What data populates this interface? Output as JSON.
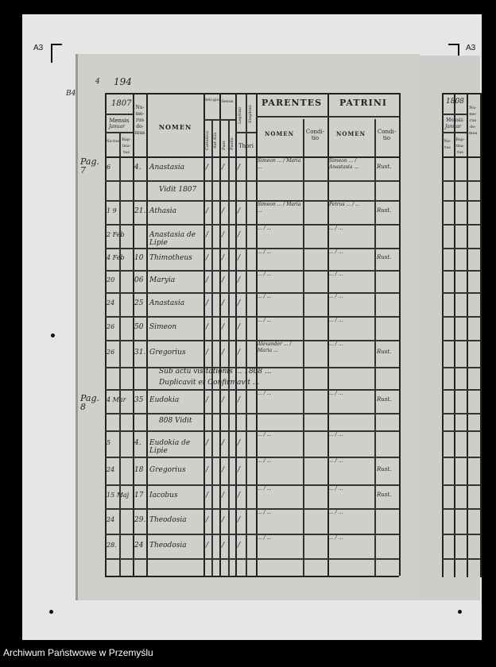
{
  "scan": {
    "sheet_label_left": "A3",
    "sheet_label_right": "A3",
    "footer": "Archiwum Państwowe w Przemyślu"
  },
  "page": {
    "margin_marks": {
      "b4": "B4",
      "folio_small": "4",
      "folio": "194",
      "pag_7": "Pag. 7",
      "pag_8": "Pag. 8"
    },
    "header": {
      "year": "1807",
      "mensis": "Mensis",
      "mensis_value": "Januar",
      "natus": "Na-tus",
      "baptisatus": "Bap-tisa-tus",
      "numerus_domus": "Nu-me-rus do-mus",
      "nomen": "NOMEN",
      "religio": "Reli-gio",
      "catholica": "Catholica",
      "aut_alia": "Aut Alia",
      "sexus": "Sexus",
      "puer": "Puer",
      "puella": "Puella",
      "legitimi": "Legitimi",
      "illegitimi": "Illegitimi",
      "thori": "Thori",
      "parentes": "PARENTES",
      "parentes_nomen": "NOMEN",
      "parentes_conditio": "Condi-tio",
      "patrini": "PATRINI",
      "patrini_nomen": "NOMEN",
      "patrini_conditio": "Condi-tio"
    },
    "rows": [
      {
        "date": "6",
        "house": "4.",
        "name": "Anastasia",
        "parents": "Simeon ... / Maria ...",
        "patrini": "Simeon ... / Anastasia ...",
        "conditio": "Rust."
      },
      {
        "note": "Vidit 1807"
      },
      {
        "date": "1 9",
        "house": "21.",
        "name": "Athasia",
        "parents": "Simeon ... / Maria ...",
        "patrini": "Petrus ... / ...",
        "conditio": "Rust."
      },
      {
        "date": "2 Feb",
        "house": "",
        "name": "Anastasia de Lipie",
        "parents": "... / ...",
        "patrini": "... / ...",
        "conditio": ""
      },
      {
        "date": "4 Feb",
        "house": "10",
        "name": "Thimotheus",
        "parents": "... / ...",
        "patrini": "... / ...",
        "conditio": "Rust."
      },
      {
        "date": "20",
        "house": "06",
        "name": "Maryia",
        "parents": "... / ...",
        "patrini": "... / ...",
        "conditio": ""
      },
      {
        "date": "24",
        "house": "25",
        "name": "Anastasia",
        "parents": "... / ...",
        "patrini": "... / ...",
        "conditio": ""
      },
      {
        "date": "26",
        "house": "50",
        "name": "Simeon",
        "parents": "... / ...",
        "patrini": "... / ...",
        "conditio": ""
      },
      {
        "date": "26",
        "house": "31.",
        "name": "Gregorius",
        "parents": "Alexander ... / Maria ...",
        "patrini": "... / ...",
        "conditio": "Rust."
      },
      {
        "note": "Sub actu visitationis ... 1808 ..."
      },
      {
        "note": "Duplicavit et Confirmavit ..."
      },
      {
        "date": "4 Mar",
        "house": "35",
        "name": "Eudokia",
        "parents": "... / ...",
        "patrini": "... / ...",
        "conditio": "Rust."
      },
      {
        "note": "808 Vidit"
      },
      {
        "date": "5",
        "house": "4.",
        "name": "Eudokia de Lipie",
        "parents": "... / ...",
        "patrini": "... / ...",
        "conditio": ""
      },
      {
        "date": "24",
        "house": "18",
        "name": "Gregorius",
        "parents": "... / ...",
        "patrini": "... / ...",
        "conditio": "Rust."
      },
      {
        "date": "15 Maj",
        "house": "17",
        "name": "Iacobus",
        "parents": "... / ...",
        "patrini": "... / ...",
        "conditio": "Rust."
      },
      {
        "date": "24",
        "house": "29.",
        "name": "Theodosia",
        "parents": "... / ...",
        "patrini": "... / ...",
        "conditio": ""
      },
      {
        "date": "28.",
        "house": "24",
        "name": "Theodosia",
        "parents": "... / ...",
        "patrini": "... / ...",
        "conditio": ""
      }
    ]
  },
  "next_page": {
    "year": "1808",
    "mensis": "Mensis",
    "mensis_value": "Januar",
    "natus": "Na-tus",
    "baptisatus": "Bap-tisa-tus",
    "numerus": "Nu-me-rus do-mus"
  }
}
